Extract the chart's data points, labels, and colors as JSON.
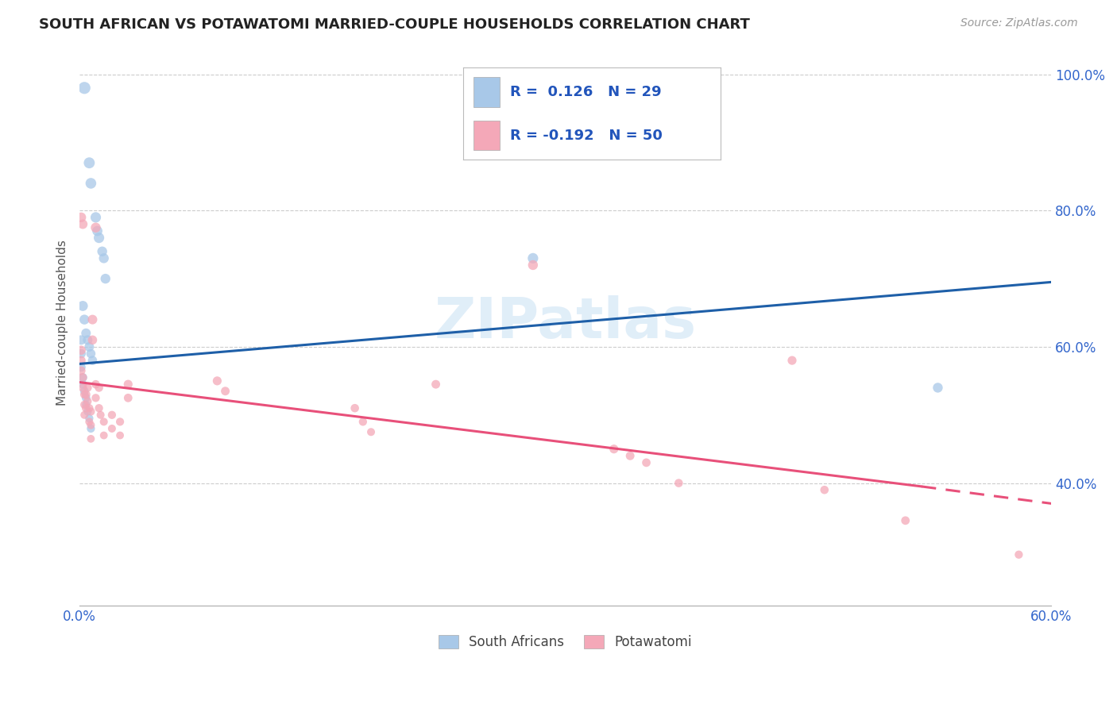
{
  "title": "SOUTH AFRICAN VS POTAWATOMI MARRIED-COUPLE HOUSEHOLDS CORRELATION CHART",
  "source": "Source: ZipAtlas.com",
  "ylabel": "Married-couple Households",
  "xlim": [
    0.0,
    0.6
  ],
  "ylim": [
    0.22,
    1.05
  ],
  "x_ticks": [
    0.0,
    0.1,
    0.2,
    0.3,
    0.4,
    0.5,
    0.6
  ],
  "x_tick_labels": [
    "0.0%",
    "",
    "",
    "",
    "",
    "",
    "60.0%"
  ],
  "y_ticks": [
    0.4,
    0.6,
    0.8,
    1.0
  ],
  "y_tick_labels": [
    "40.0%",
    "60.0%",
    "80.0%",
    "100.0%"
  ],
  "blue_color": "#A8C8E8",
  "pink_color": "#F4A8B8",
  "blue_line_color": "#1E5FA8",
  "pink_line_color": "#E8507A",
  "legend_blue_R": "0.126",
  "legend_blue_N": "29",
  "legend_pink_R": "-0.192",
  "legend_pink_N": "50",
  "legend_label_sa": "South Africans",
  "legend_label_pot": "Potawatomi",
  "watermark": "ZIPatlas",
  "background_color": "#ffffff",
  "blue_points": [
    [
      0.003,
      0.98
    ],
    [
      0.006,
      0.87
    ],
    [
      0.007,
      0.84
    ],
    [
      0.01,
      0.79
    ],
    [
      0.011,
      0.77
    ],
    [
      0.012,
      0.76
    ],
    [
      0.014,
      0.74
    ],
    [
      0.015,
      0.73
    ],
    [
      0.016,
      0.7
    ],
    [
      0.002,
      0.66
    ],
    [
      0.003,
      0.64
    ],
    [
      0.004,
      0.62
    ],
    [
      0.005,
      0.61
    ],
    [
      0.006,
      0.6
    ],
    [
      0.007,
      0.59
    ],
    [
      0.008,
      0.58
    ],
    [
      0.001,
      0.61
    ],
    [
      0.001,
      0.59
    ],
    [
      0.001,
      0.57
    ],
    [
      0.002,
      0.555
    ],
    [
      0.002,
      0.545
    ],
    [
      0.003,
      0.535
    ],
    [
      0.004,
      0.525
    ],
    [
      0.004,
      0.515
    ],
    [
      0.005,
      0.505
    ],
    [
      0.006,
      0.495
    ],
    [
      0.007,
      0.48
    ],
    [
      0.28,
      0.73
    ],
    [
      0.53,
      0.54
    ]
  ],
  "pink_points": [
    [
      0.001,
      0.79
    ],
    [
      0.002,
      0.78
    ],
    [
      0.01,
      0.775
    ],
    [
      0.008,
      0.64
    ],
    [
      0.008,
      0.61
    ],
    [
      0.001,
      0.595
    ],
    [
      0.001,
      0.58
    ],
    [
      0.001,
      0.565
    ],
    [
      0.002,
      0.555
    ],
    [
      0.002,
      0.54
    ],
    [
      0.003,
      0.53
    ],
    [
      0.003,
      0.515
    ],
    [
      0.003,
      0.5
    ],
    [
      0.004,
      0.53
    ],
    [
      0.004,
      0.51
    ],
    [
      0.005,
      0.54
    ],
    [
      0.005,
      0.52
    ],
    [
      0.006,
      0.51
    ],
    [
      0.006,
      0.49
    ],
    [
      0.007,
      0.505
    ],
    [
      0.007,
      0.485
    ],
    [
      0.007,
      0.465
    ],
    [
      0.01,
      0.545
    ],
    [
      0.01,
      0.525
    ],
    [
      0.012,
      0.54
    ],
    [
      0.012,
      0.51
    ],
    [
      0.013,
      0.5
    ],
    [
      0.015,
      0.49
    ],
    [
      0.015,
      0.47
    ],
    [
      0.02,
      0.5
    ],
    [
      0.02,
      0.48
    ],
    [
      0.025,
      0.49
    ],
    [
      0.025,
      0.47
    ],
    [
      0.03,
      0.545
    ],
    [
      0.03,
      0.525
    ],
    [
      0.085,
      0.55
    ],
    [
      0.09,
      0.535
    ],
    [
      0.17,
      0.51
    ],
    [
      0.175,
      0.49
    ],
    [
      0.18,
      0.475
    ],
    [
      0.22,
      0.545
    ],
    [
      0.28,
      0.72
    ],
    [
      0.33,
      0.45
    ],
    [
      0.34,
      0.44
    ],
    [
      0.35,
      0.43
    ],
    [
      0.37,
      0.4
    ],
    [
      0.44,
      0.58
    ],
    [
      0.46,
      0.39
    ],
    [
      0.51,
      0.345
    ],
    [
      0.58,
      0.295
    ]
  ],
  "blue_sizes": [
    120,
    100,
    95,
    90,
    85,
    90,
    80,
    80,
    80,
    85,
    80,
    75,
    75,
    75,
    70,
    70,
    75,
    70,
    65,
    65,
    60,
    60,
    60,
    55,
    55,
    55,
    55,
    90,
    80
  ],
  "pink_sizes": [
    80,
    75,
    80,
    75,
    70,
    70,
    65,
    62,
    60,
    60,
    58,
    55,
    52,
    62,
    58,
    58,
    55,
    55,
    52,
    55,
    52,
    50,
    58,
    55,
    58,
    55,
    52,
    52,
    50,
    55,
    52,
    54,
    50,
    65,
    60,
    65,
    62,
    58,
    55,
    52,
    62,
    80,
    65,
    62,
    60,
    58,
    65,
    58,
    60,
    55
  ]
}
